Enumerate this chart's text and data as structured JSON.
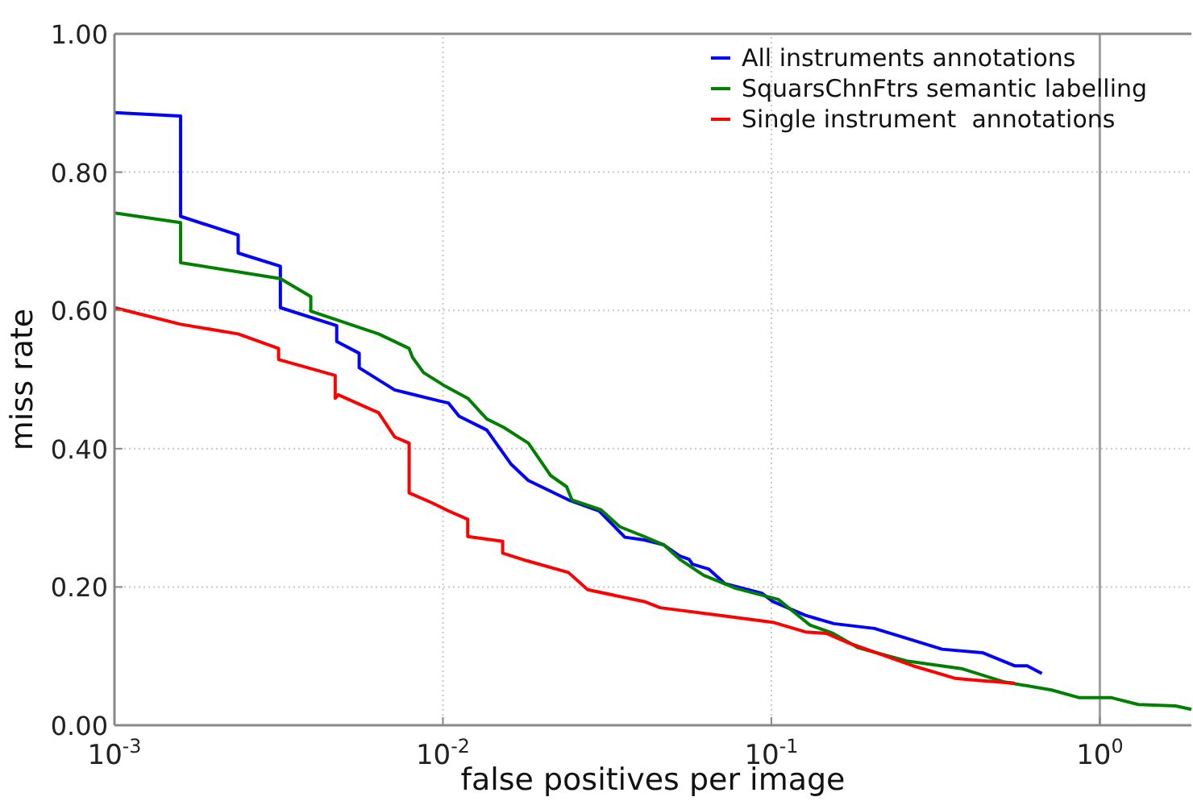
{
  "chart_data": {
    "type": "line",
    "xlabel": "false positives per image",
    "ylabel": "miss rate",
    "log": "x",
    "grid": true,
    "legend": "top right",
    "line_style": "solid",
    "xlim": [
      0.001,
      1.9
    ],
    "xticks": [
      {
        "value": 0.001,
        "label": "10$^{-3}$"
      },
      {
        "value": 0.01,
        "label": "10$^{-2}$"
      },
      {
        "value": 0.1,
        "label": "10$^{-1}$"
      },
      {
        "value": 1,
        "label": "10$^{0}$"
      }
    ],
    "ylim": [
      0,
      1
    ],
    "yticks": [
      {
        "value": 0,
        "label": "0.00"
      },
      {
        "value": 0.2,
        "label": "0.20"
      },
      {
        "value": 0.4,
        "label": "0.40"
      },
      {
        "value": 0.6,
        "label": "0.60"
      },
      {
        "value": 0.8,
        "label": "0.80"
      },
      {
        "value": 1,
        "label": "1.00"
      }
    ],
    "ref_lines": [
      {
        "axis": "x",
        "value": 1,
        "color": "#a0a0a0"
      }
    ],
    "series": [
      {
        "name": "All instruments annotations",
        "color": "#0000ff",
        "x": [
          0.001,
          0.00159,
          0.00159,
          0.00238,
          0.00238,
          0.0032,
          0.0032,
          0.00475,
          0.00475,
          0.00556,
          0.00556,
          0.00713,
          0.00977,
          0.0104,
          0.0112,
          0.0136,
          0.0161,
          0.0182,
          0.0241,
          0.0299,
          0.0358,
          0.041,
          0.047,
          0.0526,
          0.0562,
          0.0575,
          0.0644,
          0.0721,
          0.0935,
          0.101,
          0.127,
          0.155,
          0.206,
          0.249,
          0.331,
          0.439,
          0.55,
          0.601,
          0.666
        ],
        "values": [
          0.886,
          0.881,
          0.736,
          0.709,
          0.683,
          0.664,
          0.604,
          0.578,
          0.555,
          0.538,
          0.517,
          0.485,
          0.469,
          0.466,
          0.447,
          0.427,
          0.378,
          0.354,
          0.326,
          0.31,
          0.272,
          0.268,
          0.261,
          0.245,
          0.24,
          0.233,
          0.226,
          0.205,
          0.191,
          0.179,
          0.159,
          0.147,
          0.14,
          0.128,
          0.11,
          0.105,
          0.086,
          0.086,
          0.075
        ]
      },
      {
        "name": "SquarsChnFtrs semantic labelling",
        "color": "#008000",
        "x": [
          0.001,
          0.00159,
          0.00159,
          0.0032,
          0.00396,
          0.00396,
          0.00637,
          0.00789,
          0.00808,
          0.00873,
          0.0102,
          0.0119,
          0.0136,
          0.0153,
          0.0182,
          0.0213,
          0.0238,
          0.0247,
          0.0302,
          0.0346,
          0.041,
          0.047,
          0.0526,
          0.0622,
          0.078,
          0.105,
          0.131,
          0.154,
          0.184,
          0.258,
          0.379,
          0.508,
          0.713,
          0.863,
          1.08,
          1.31,
          1.7,
          1.9
        ],
        "values": [
          0.741,
          0.727,
          0.669,
          0.646,
          0.62,
          0.599,
          0.566,
          0.545,
          0.532,
          0.51,
          0.49,
          0.473,
          0.443,
          0.431,
          0.408,
          0.361,
          0.345,
          0.326,
          0.312,
          0.287,
          0.273,
          0.261,
          0.24,
          0.217,
          0.198,
          0.182,
          0.145,
          0.133,
          0.112,
          0.093,
          0.082,
          0.063,
          0.051,
          0.04,
          0.04,
          0.03,
          0.028,
          0.023
        ]
      },
      {
        "name": "Single instrument  annotations",
        "color": "#ff0000",
        "x": [
          0.001,
          0.00159,
          0.00238,
          0.00316,
          0.00316,
          0.0047,
          0.0047,
          0.0048,
          0.00637,
          0.00713,
          0.00789,
          0.00789,
          0.00924,
          0.0104,
          0.0119,
          0.0119,
          0.0152,
          0.0152,
          0.018,
          0.0241,
          0.0276,
          0.041,
          0.0459,
          0.078,
          0.101,
          0.127,
          0.147,
          0.172,
          0.223,
          0.27,
          0.362,
          0.424,
          0.55
        ],
        "values": [
          0.604,
          0.58,
          0.566,
          0.545,
          0.529,
          0.506,
          0.473,
          0.478,
          0.452,
          0.417,
          0.408,
          0.336,
          0.322,
          0.31,
          0.298,
          0.273,
          0.266,
          0.249,
          0.238,
          0.221,
          0.196,
          0.179,
          0.17,
          0.156,
          0.149,
          0.135,
          0.133,
          0.119,
          0.1,
          0.086,
          0.068,
          0.065,
          0.061
        ]
      }
    ]
  }
}
